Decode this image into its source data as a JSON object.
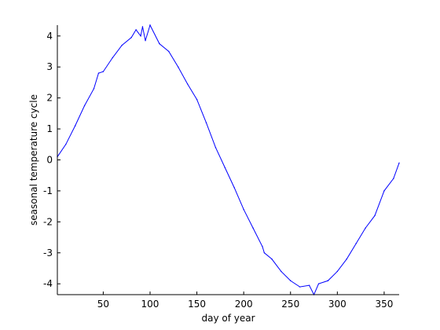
{
  "chart_data": {
    "type": "line",
    "xlabel": "day of year",
    "ylabel": "seasonal temperature cycle",
    "xlim": [
      1,
      366
    ],
    "ylim": [
      -4.35,
      4.35
    ],
    "xticks": [
      50,
      100,
      150,
      200,
      250,
      300,
      350
    ],
    "yticks": [
      4,
      3,
      2,
      1,
      0,
      -1,
      -2,
      -3,
      -4
    ],
    "grid": false,
    "legend": "none",
    "series": [
      {
        "color": "#0000ff",
        "x": [
          1,
          10,
          20,
          30,
          40,
          45,
          50,
          60,
          70,
          80,
          85,
          90,
          92,
          95,
          100,
          110,
          120,
          130,
          140,
          150,
          160,
          170,
          180,
          190,
          200,
          210,
          220,
          222,
          230,
          240,
          250,
          260,
          270,
          275,
          280,
          290,
          300,
          310,
          320,
          330,
          340,
          350,
          360,
          366
        ],
        "values": [
          0.1,
          0.5,
          1.1,
          1.75,
          2.3,
          2.8,
          2.85,
          3.3,
          3.7,
          3.95,
          4.2,
          4.0,
          4.3,
          3.85,
          4.35,
          3.75,
          3.5,
          3.0,
          2.45,
          1.95,
          1.2,
          0.4,
          -0.25,
          -0.9,
          -1.6,
          -2.2,
          -2.8,
          -3.0,
          -3.2,
          -3.6,
          -3.9,
          -4.1,
          -4.05,
          -4.35,
          -4.0,
          -3.9,
          -3.6,
          -3.2,
          -2.7,
          -2.2,
          -1.8,
          -1.0,
          -0.6,
          -0.1
        ]
      }
    ]
  }
}
